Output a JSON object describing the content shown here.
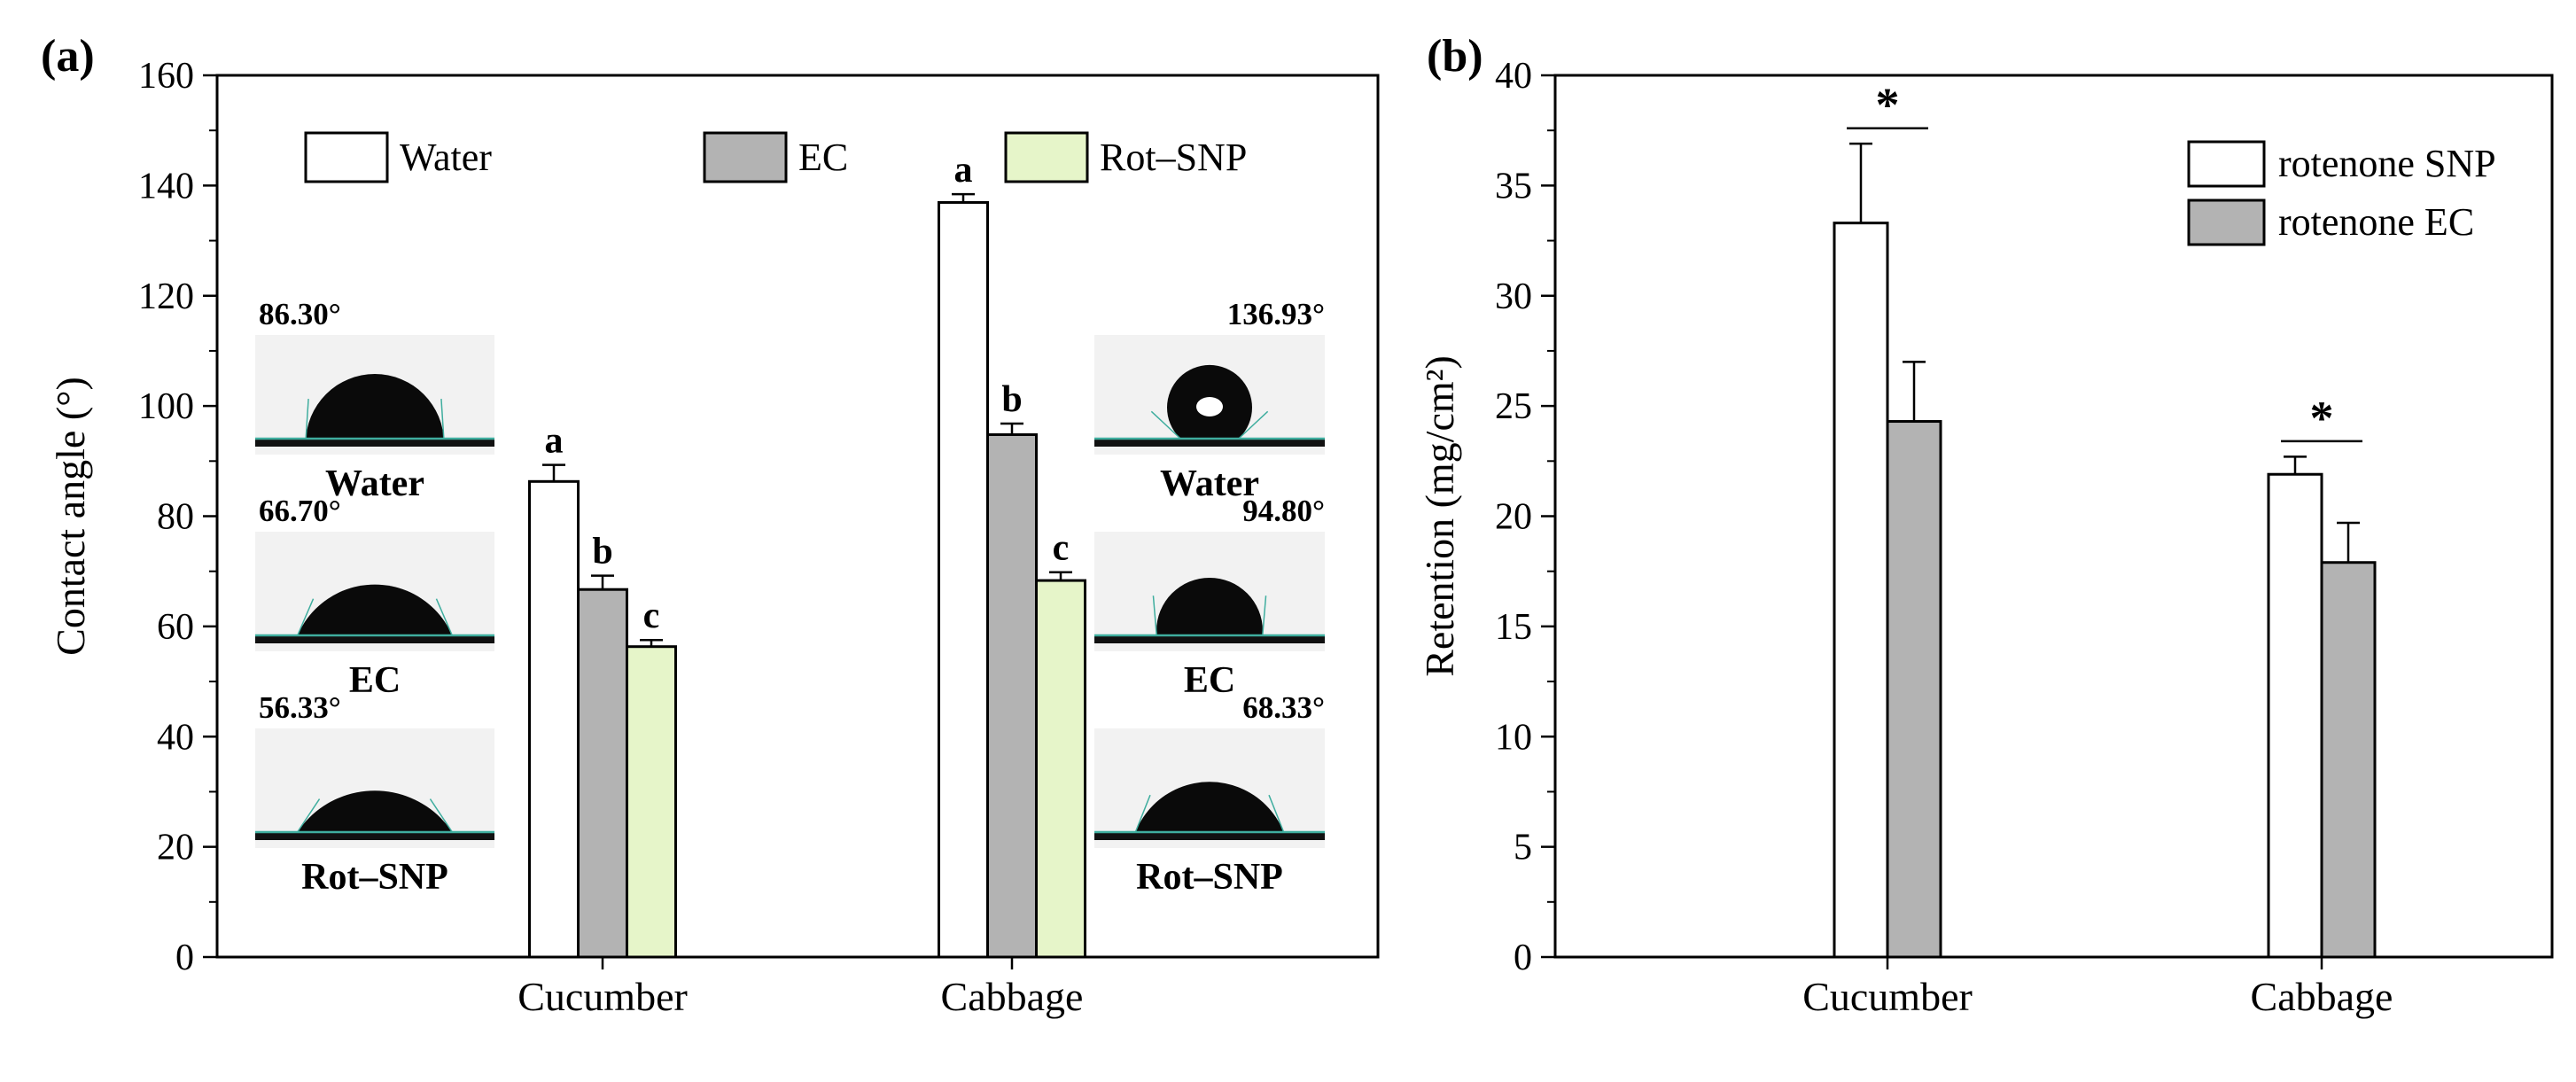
{
  "style": {
    "axis_color": "#000000",
    "bar_border_color": "#000000",
    "droplet_baseline_color": "#3fae9f",
    "white_fill": "#ffffff",
    "gray_fill": "#b3b3b3",
    "green_fill": "#e6f5c9",
    "background": "#ffffff"
  },
  "chart_data": [
    {
      "type": "bar",
      "panel_label": "(a)",
      "title": "",
      "xlabel": "",
      "ylabel": "Contact angle (°)",
      "ylim": [
        0,
        160
      ],
      "ytick_step": 20,
      "grid": false,
      "legend_position": "top-inside-row",
      "categories": [
        "Cucumber",
        "Cabbage"
      ],
      "series": [
        {
          "name": "Water",
          "fill": "#ffffff",
          "values": [
            86.3,
            136.93
          ],
          "errors": [
            3.0,
            1.5
          ],
          "bar_letters": [
            "a",
            "a"
          ]
        },
        {
          "name": "EC",
          "fill": "#b3b3b3",
          "values": [
            66.7,
            94.8
          ],
          "errors": [
            2.5,
            2.0
          ],
          "bar_letters": [
            "b",
            "b"
          ]
        },
        {
          "name": "Rot–SNP",
          "fill": "#e6f5c9",
          "values": [
            56.33,
            68.33
          ],
          "errors": [
            1.2,
            1.5
          ],
          "bar_letters": [
            "c",
            "c"
          ]
        }
      ],
      "insets": [
        {
          "group": "Cucumber",
          "caption": "Water",
          "angle_deg": 86.3,
          "angle_label": "86.30°"
        },
        {
          "group": "Cucumber",
          "caption": "EC",
          "angle_deg": 66.7,
          "angle_label": "66.70°"
        },
        {
          "group": "Cucumber",
          "caption": "Rot–SNP",
          "angle_deg": 56.33,
          "angle_label": "56.33°"
        },
        {
          "group": "Cabbage",
          "caption": "Water",
          "angle_deg": 136.93,
          "angle_label": "136.93°"
        },
        {
          "group": "Cabbage",
          "caption": "EC",
          "angle_deg": 94.8,
          "angle_label": "94.80°"
        },
        {
          "group": "Cabbage",
          "caption": "Rot–SNP",
          "angle_deg": 68.33,
          "angle_label": "68.33°"
        }
      ]
    },
    {
      "type": "bar",
      "panel_label": "(b)",
      "title": "",
      "xlabel": "",
      "ylabel": "Retention (mg/cm²)",
      "ylim": [
        0,
        40
      ],
      "ytick_step": 5,
      "grid": false,
      "legend_position": "top-right-inside-column",
      "categories": [
        "Cucumber",
        "Cabbage"
      ],
      "series": [
        {
          "name": "rotenone SNP",
          "fill": "#ffffff",
          "values": [
            33.3,
            21.9
          ],
          "errors": [
            3.6,
            0.8
          ]
        },
        {
          "name": "rotenone EC",
          "fill": "#b3b3b3",
          "values": [
            24.3,
            17.9
          ],
          "errors": [
            2.7,
            1.8
          ]
        }
      ],
      "significance": [
        {
          "category": "Cucumber",
          "label": "*"
        },
        {
          "category": "Cabbage",
          "label": "*"
        }
      ]
    }
  ]
}
